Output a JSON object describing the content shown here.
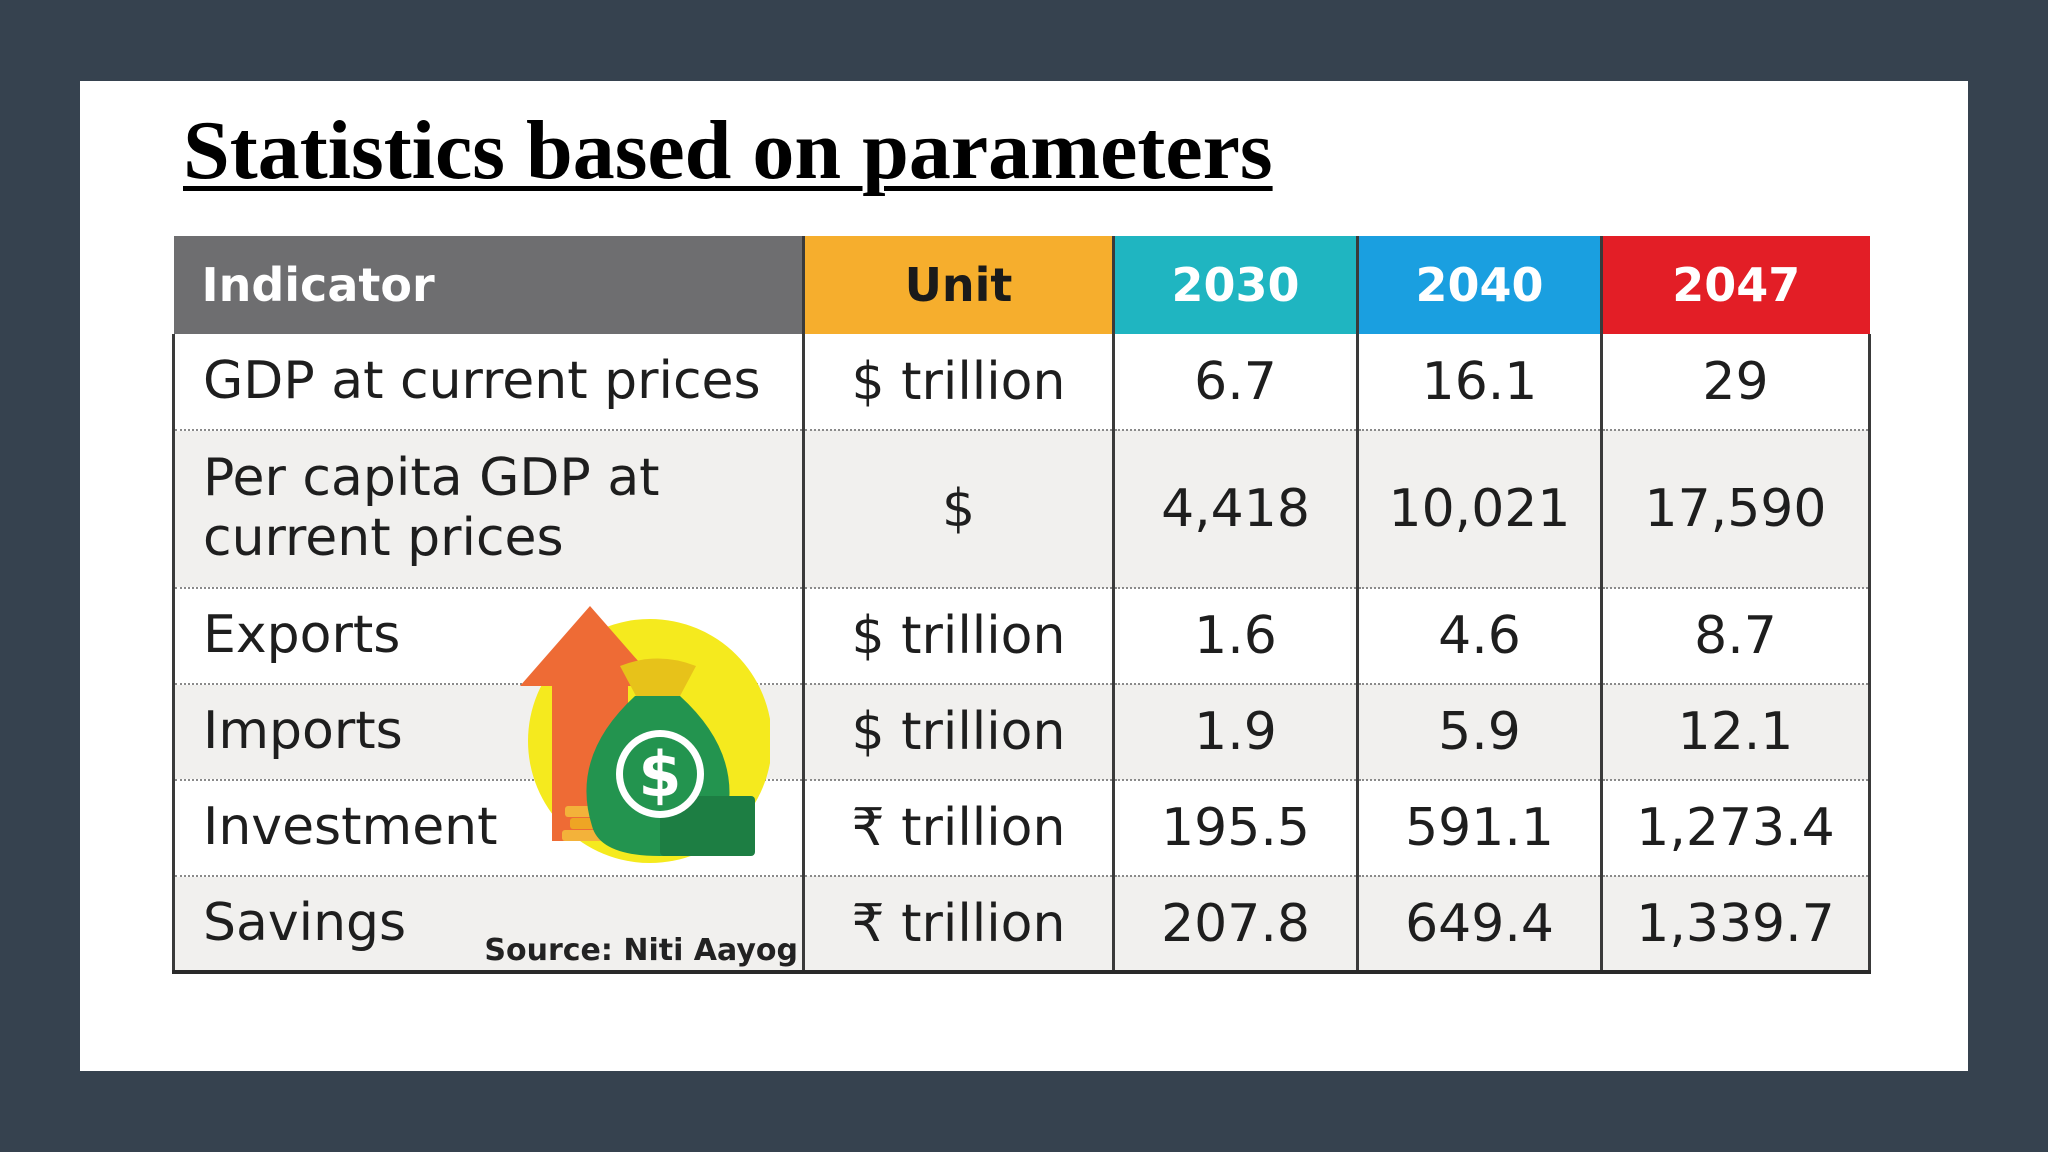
{
  "slide": {
    "title": "Statistics based on parameters"
  },
  "table": {
    "headers": {
      "indicator": "Indicator",
      "unit": "Unit",
      "y2030": "2030",
      "y2040": "2040",
      "y2047": "2047"
    },
    "rows": [
      {
        "indicator": "GDP at current prices",
        "unit": "$ trillion",
        "y2030": "6.7",
        "y2040": "16.1",
        "y2047": "29"
      },
      {
        "indicator": "Per capita GDP at current prices",
        "unit": "$",
        "y2030": "4,418",
        "y2040": "10,021",
        "y2047": "17,590"
      },
      {
        "indicator": "Exports",
        "unit": "$ trillion",
        "y2030": "1.6",
        "y2040": "4.6",
        "y2047": "8.7"
      },
      {
        "indicator": "Imports",
        "unit": "$ trillion",
        "y2030": "1.9",
        "y2040": "5.9",
        "y2047": "12.1"
      },
      {
        "indicator": "Investment",
        "unit": "₹ trillion",
        "y2030": "195.5",
        "y2040": "591.1",
        "y2047": "1,273.4"
      },
      {
        "indicator": "Savings",
        "unit": "₹ trillion",
        "y2030": "207.8",
        "y2040": "649.4",
        "y2047": "1,339.7"
      }
    ],
    "source": "Source: Niti Aayog"
  },
  "colors": {
    "background": "#36424f",
    "header_indicator": "#6e6e70",
    "header_unit": "#f6ae2d",
    "header_2030": "#1fb5c1",
    "header_2040": "#1a9fe0",
    "header_2047": "#e31e26"
  },
  "graphic": {
    "icon": "money-bag-growth-icon",
    "symbol": "$"
  }
}
